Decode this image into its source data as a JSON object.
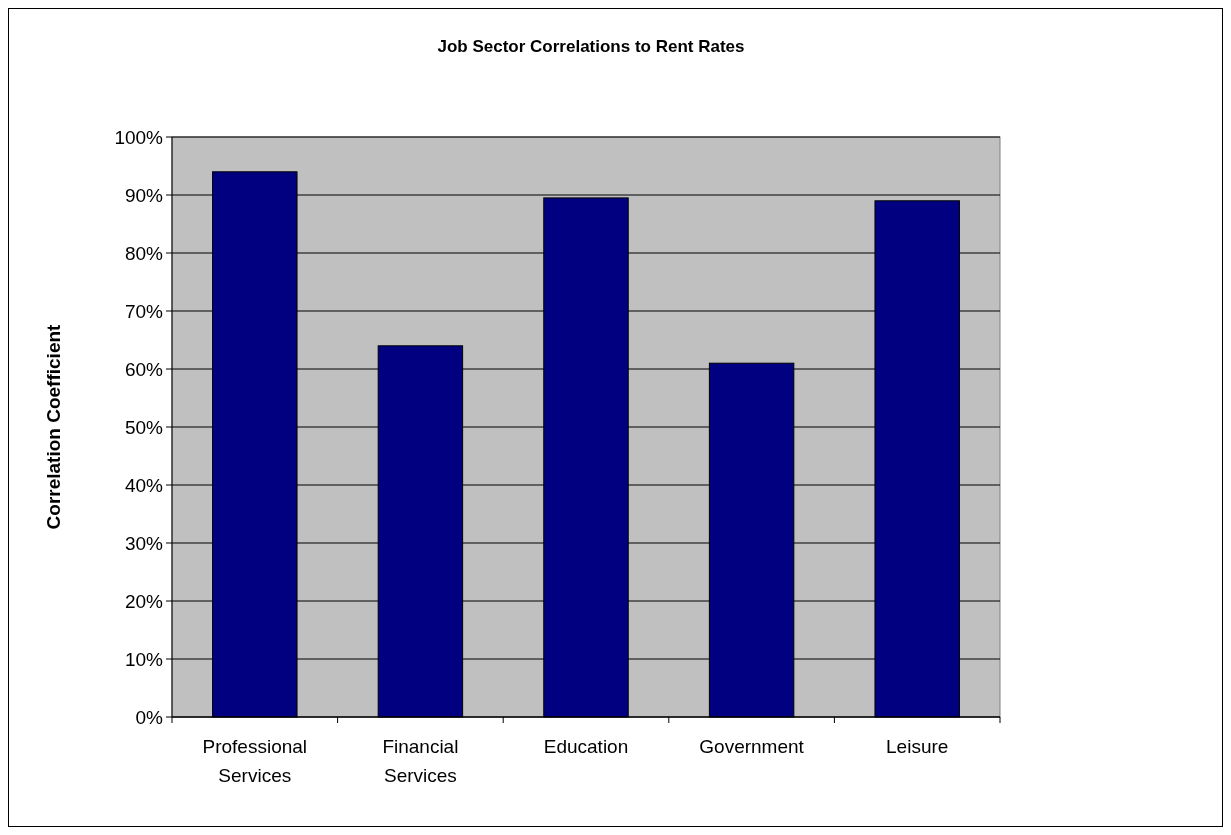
{
  "chart_data": {
    "type": "bar",
    "title": "Job Sector Correlations to Rent Rates",
    "ylabel": "Correlation Coefficient",
    "categories": [
      "Professional Services",
      "Financial Services",
      "Education",
      "Government",
      "Leisure"
    ],
    "values": [
      94,
      64,
      89.5,
      61,
      89
    ],
    "color": "#000080",
    "ylim": [
      0,
      100
    ],
    "yticks": [
      {
        "value": 0,
        "label": "0%"
      },
      {
        "value": 10,
        "label": "10%"
      },
      {
        "value": 20,
        "label": "20%"
      },
      {
        "value": 30,
        "label": "30%"
      },
      {
        "value": 40,
        "label": "40%"
      },
      {
        "value": 50,
        "label": "50%"
      },
      {
        "value": 60,
        "label": "60%"
      },
      {
        "value": 70,
        "label": "70%"
      },
      {
        "value": 80,
        "label": "80%"
      },
      {
        "value": 90,
        "label": "90%"
      },
      {
        "value": 100,
        "label": "100%"
      }
    ],
    "grid": "y"
  }
}
